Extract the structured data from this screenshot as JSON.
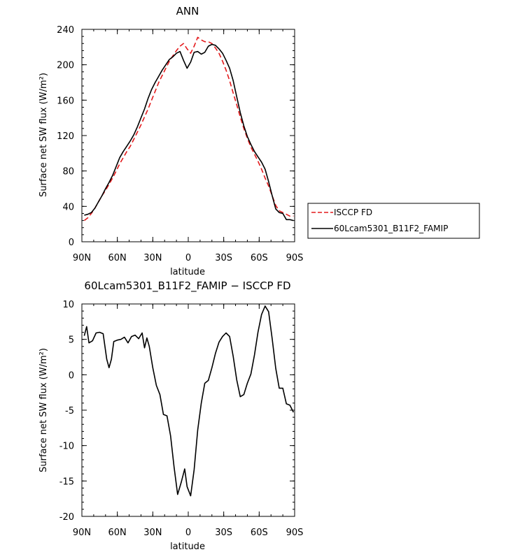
{
  "chart_data": [
    {
      "type": "line",
      "title": "ANN",
      "xlabel": "latitude",
      "ylabel": "Surface net SW flux (W/m²)",
      "x_ticks": [
        "90N",
        "60N",
        "30N",
        "0",
        "30S",
        "60S",
        "90S"
      ],
      "y_ticks": [
        "0",
        "40",
        "80",
        "120",
        "160",
        "200",
        "240"
      ],
      "xlim": [
        -90,
        90
      ],
      "ylim": [
        0,
        240
      ],
      "legend": "right",
      "series": [
        {
          "name": "ISCCP FD",
          "color": "#e41a1c",
          "style": "dashed",
          "x": [
            -88,
            -85,
            -82,
            -79,
            -76,
            -73,
            -70,
            -67,
            -64,
            -61,
            -58,
            -55,
            -52,
            -49,
            -46,
            -43,
            -40,
            -37,
            -34,
            -31,
            -28,
            -25,
            -22,
            -19,
            -16,
            -13,
            -10,
            -7,
            -4,
            -1,
            2,
            5,
            8,
            11,
            14,
            17,
            20,
            23,
            26,
            29,
            32,
            35,
            38,
            41,
            44,
            47,
            50,
            53,
            56,
            59,
            62,
            65,
            68,
            71,
            74,
            77,
            80,
            83,
            86,
            89
          ],
          "y": [
            24,
            27,
            32,
            38,
            45,
            52,
            58,
            65,
            72,
            80,
            88,
            95,
            102,
            108,
            116,
            124,
            132,
            141,
            150,
            160,
            170,
            180,
            188,
            196,
            204,
            210,
            216,
            221,
            224,
            218,
            213,
            221,
            231,
            228,
            226,
            226,
            224,
            219,
            213,
            204,
            194,
            182,
            168,
            155,
            141,
            128,
            117,
            107,
            99,
            91,
            82,
            72,
            63,
            52,
            41,
            35,
            33,
            31,
            29,
            29
          ]
        },
        {
          "name": "60Lcam5301_B11F2_FAMIP",
          "color": "#000000",
          "style": "solid",
          "x": [
            -88,
            -85,
            -82,
            -79,
            -76,
            -73,
            -70,
            -67,
            -64,
            -61,
            -58,
            -55,
            -52,
            -49,
            -46,
            -43,
            -40,
            -37,
            -34,
            -31,
            -28,
            -25,
            -22,
            -19,
            -16,
            -13,
            -10,
            -7,
            -4,
            -1,
            2,
            5,
            8,
            11,
            14,
            17,
            20,
            23,
            26,
            29,
            32,
            35,
            38,
            41,
            44,
            47,
            50,
            53,
            56,
            59,
            62,
            65,
            68,
            71,
            74,
            77,
            80,
            83,
            86,
            89
          ],
          "y": [
            30,
            31,
            33,
            38,
            45,
            52,
            60,
            67,
            75,
            85,
            95,
            102,
            108,
            114,
            121,
            130,
            140,
            150,
            162,
            172,
            180,
            187,
            194,
            200,
            206,
            209,
            213,
            215,
            205,
            196,
            203,
            214,
            215,
            212,
            214,
            221,
            223,
            222,
            218,
            213,
            205,
            196,
            182,
            164,
            146,
            131,
            119,
            110,
            102,
            96,
            90,
            82,
            68,
            52,
            37,
            33,
            32,
            25,
            25,
            24
          ]
        }
      ]
    },
    {
      "type": "line",
      "title": "60Lcam5301_B11F2_FAMIP − ISCCP FD",
      "xlabel": "latitude",
      "ylabel": "Surface net SW flux (W/m²)",
      "x_ticks": [
        "90N",
        "60N",
        "30N",
        "0",
        "30S",
        "60S",
        "90S"
      ],
      "y_ticks": [
        "-20",
        "-15",
        "-10",
        "-5",
        "0",
        "5",
        "10"
      ],
      "xlim": [
        -90,
        90
      ],
      "ylim": [
        -20,
        10
      ],
      "series": [
        {
          "color": "#000000",
          "style": "solid",
          "x": [
            -88,
            -86,
            -84,
            -81,
            -78,
            -75,
            -72,
            -69,
            -67,
            -65,
            -63,
            -60,
            -57,
            -54,
            -51,
            -48,
            -45,
            -42,
            -39,
            -37,
            -35,
            -33,
            -30,
            -27,
            -24,
            -21,
            -18,
            -15,
            -12,
            -9,
            -6,
            -3,
            -1,
            2,
            5,
            8,
            11,
            14,
            17,
            20,
            23,
            26,
            29,
            32,
            35,
            38,
            41,
            44,
            47,
            50,
            53,
            56,
            59,
            62,
            65,
            68,
            71,
            74,
            77,
            80,
            83,
            86,
            89
          ],
          "y": [
            5.5,
            6.8,
            4.5,
            4.8,
            5.9,
            6.0,
            5.8,
            2.2,
            1.0,
            2.2,
            4.7,
            4.9,
            5.0,
            5.3,
            4.5,
            5.4,
            5.6,
            5.1,
            5.9,
            3.8,
            5.2,
            4.0,
            1.0,
            -1.5,
            -2.8,
            -5.6,
            -5.8,
            -8.6,
            -13.0,
            -16.9,
            -15.2,
            -13.3,
            -15.8,
            -17.1,
            -13.4,
            -7.8,
            -4.0,
            -1.2,
            -0.8,
            1.0,
            3.0,
            4.6,
            5.4,
            5.9,
            5.4,
            2.6,
            -0.7,
            -3.1,
            -2.8,
            -1.2,
            0.1,
            2.8,
            6.0,
            8.5,
            9.7,
            8.9,
            5.1,
            0.9,
            -1.9,
            -1.9,
            -4.1,
            -4.3,
            -5.3
          ]
        }
      ]
    }
  ]
}
